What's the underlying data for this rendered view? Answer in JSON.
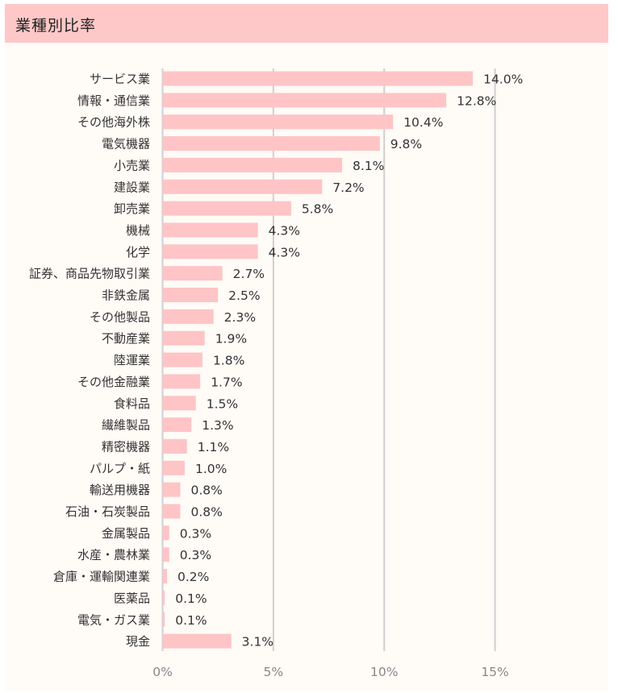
{
  "header": {
    "title": "業種別比率"
  },
  "colors": {
    "bar": "#ffc4c6",
    "header": "#ffc8c8",
    "grid": "#cfcfcf",
    "background": "#fffbf7"
  },
  "chart_data": {
    "type": "bar",
    "orientation": "horizontal",
    "title": "業種別比率",
    "xlim": [
      0,
      15
    ],
    "xticks": [
      0,
      5,
      10,
      15
    ],
    "xtick_labels": [
      "0%",
      "5%",
      "10%",
      "15%"
    ],
    "grid": true,
    "categories": [
      "サービス業",
      "情報・通信業",
      "その他海外株",
      "電気機器",
      "小売業",
      "建設業",
      "卸売業",
      "機械",
      "化学",
      "証券、商品先物取引業",
      "非鉄金属",
      "その他製品",
      "不動産業",
      "陸運業",
      "その他金融業",
      "食料品",
      "繊維製品",
      "精密機器",
      "パルプ・紙",
      "輸送用機器",
      "石油・石炭製品",
      "金属製品",
      "水産・農林業",
      "倉庫・運輸関連業",
      "医薬品",
      "電気・ガス業",
      "現金"
    ],
    "values": [
      14.0,
      12.8,
      10.4,
      9.8,
      8.1,
      7.2,
      5.8,
      4.3,
      4.3,
      2.7,
      2.5,
      2.3,
      1.9,
      1.8,
      1.7,
      1.5,
      1.3,
      1.1,
      1.0,
      0.8,
      0.8,
      0.3,
      0.3,
      0.2,
      0.1,
      0.1,
      3.1
    ],
    "value_labels": [
      "14.0%",
      "12.8%",
      "10.4%",
      "9.8%",
      "8.1%",
      "7.2%",
      "5.8%",
      "4.3%",
      "4.3%",
      "2.7%",
      "2.5%",
      "2.3%",
      "1.9%",
      "1.8%",
      "1.7%",
      "1.5%",
      "1.3%",
      "1.1%",
      "1.0%",
      "0.8%",
      "0.8%",
      "0.3%",
      "0.3%",
      "0.2%",
      "0.1%",
      "0.1%",
      "3.1%"
    ]
  }
}
